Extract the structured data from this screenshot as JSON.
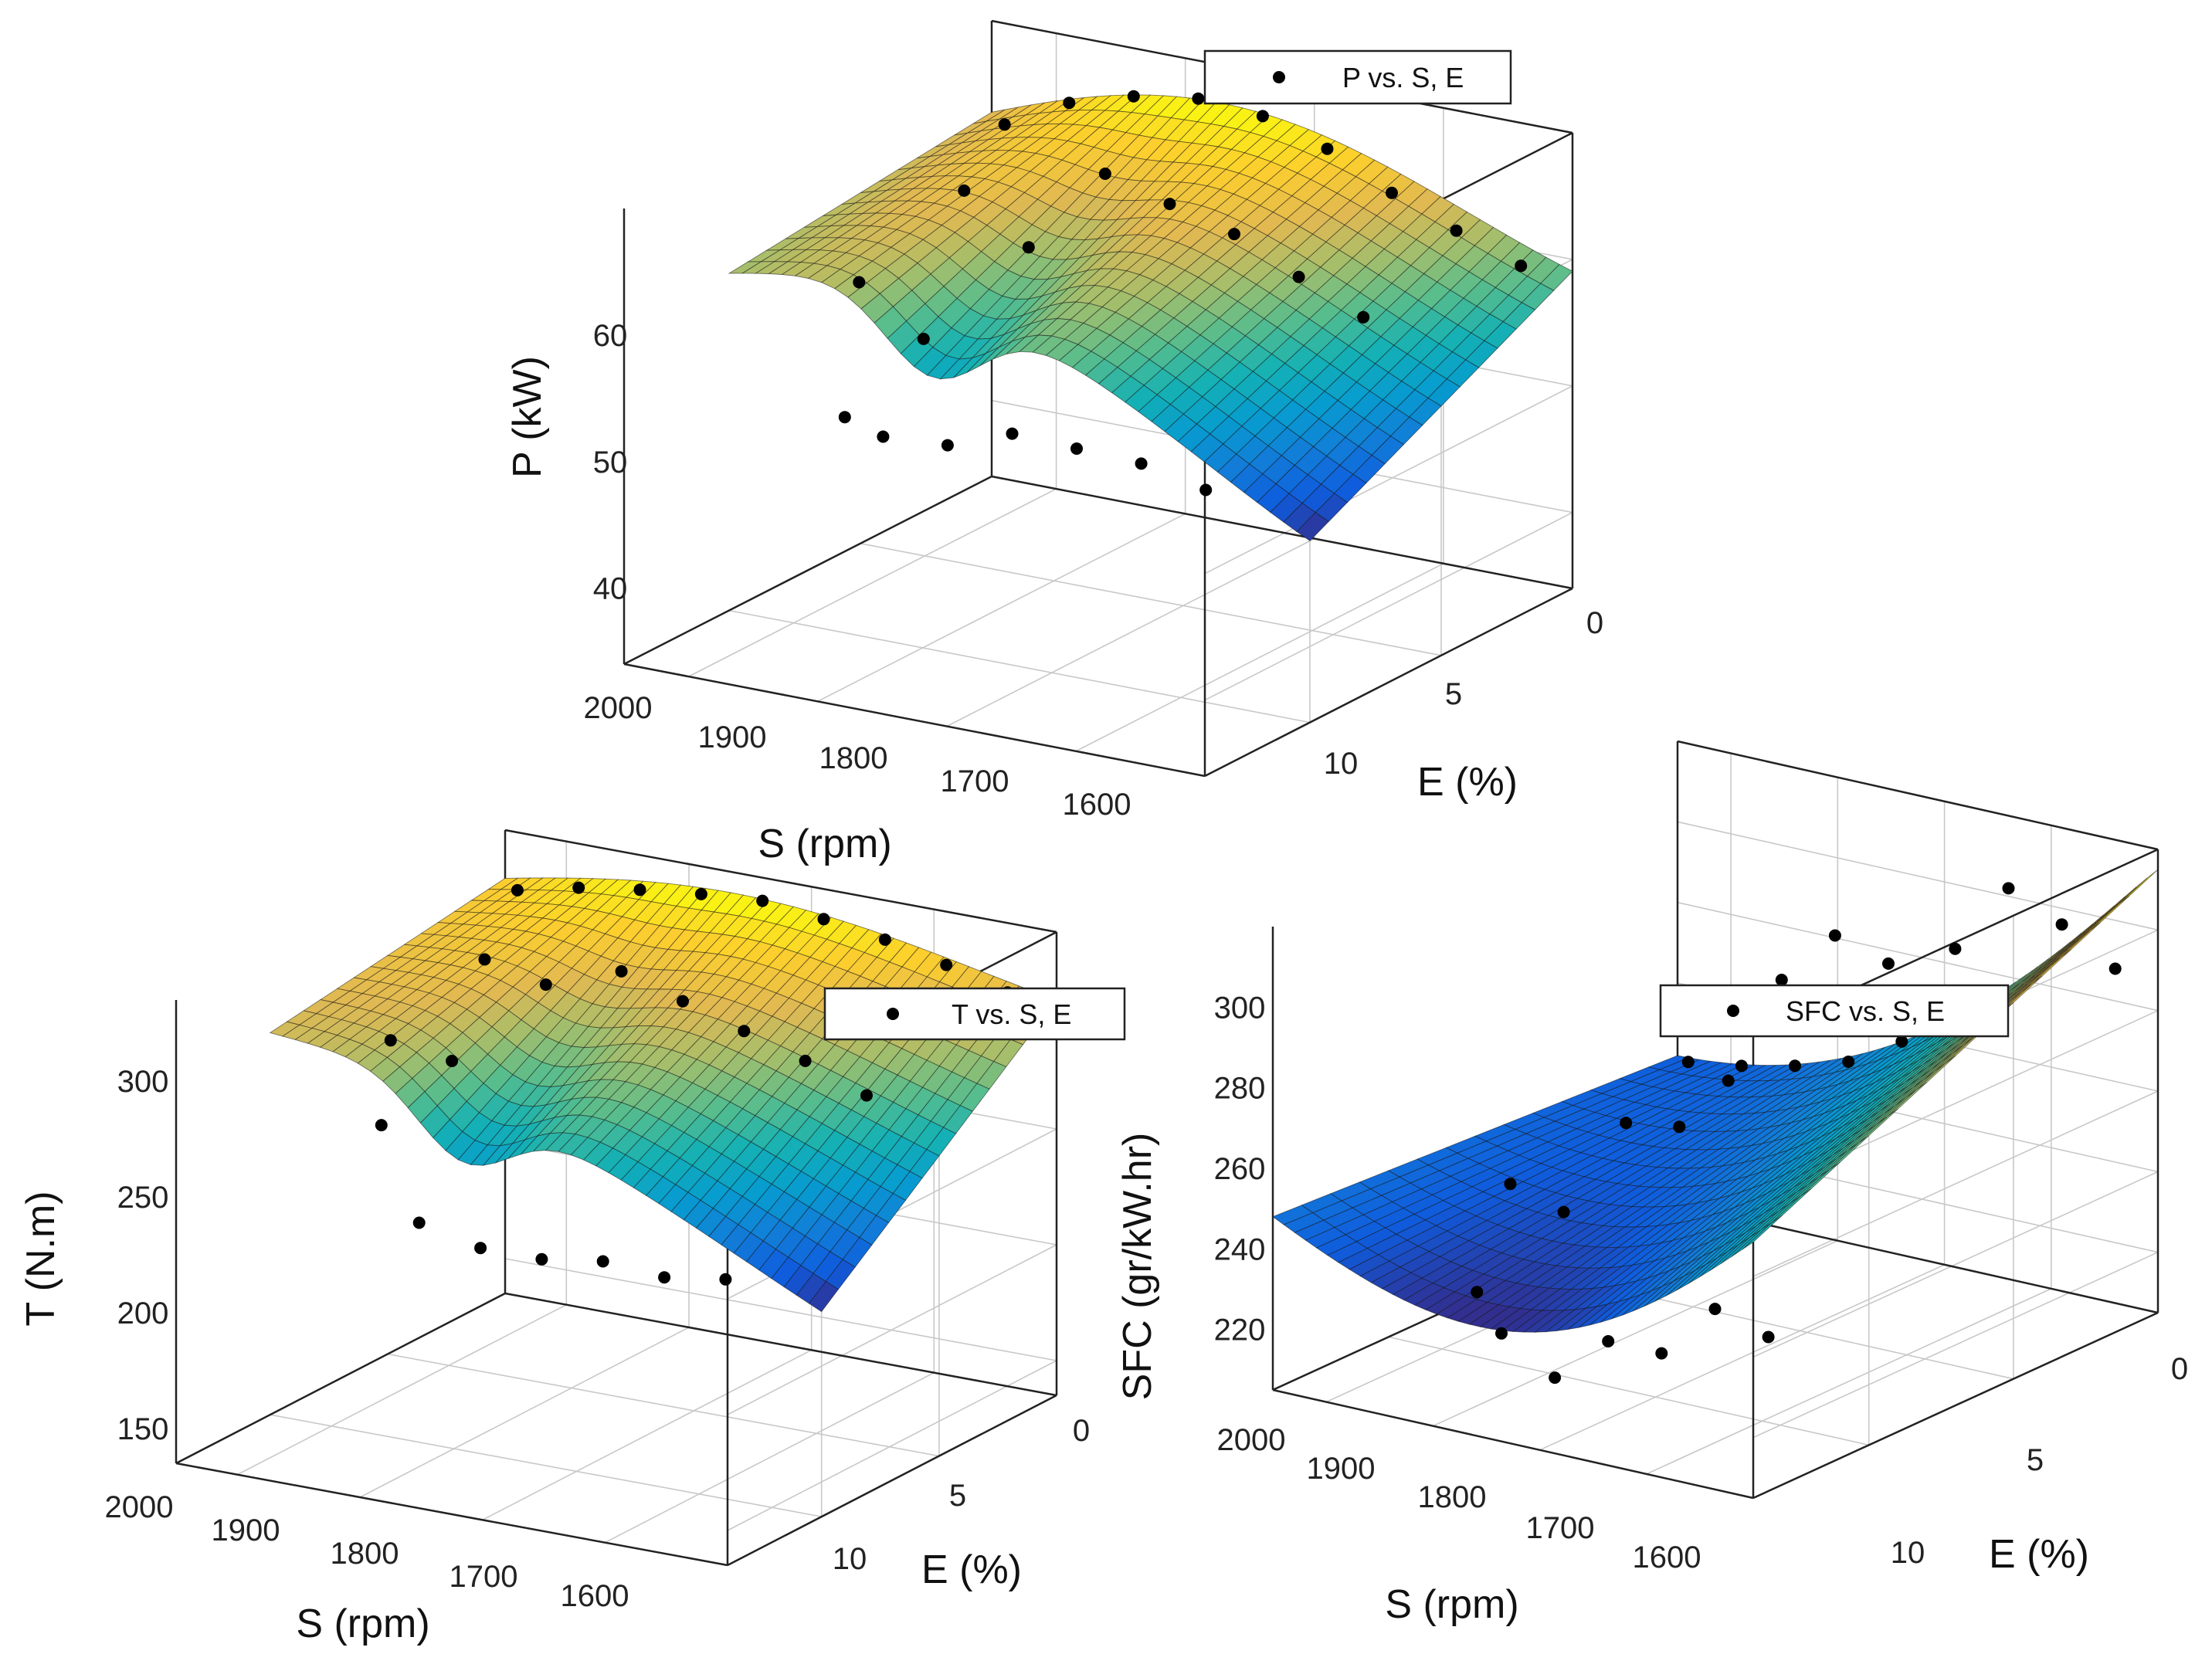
{
  "chart_data": [
    {
      "type": "surface",
      "title": "",
      "legend": "P vs. S, E",
      "zlabel": "P (kW)",
      "xlabel": "S (rpm)",
      "ylabel": "E (%)",
      "s_ticks": [
        "2000",
        "1900",
        "1800",
        "1700",
        "1600"
      ],
      "e_ticks": [
        "0",
        "5",
        "10"
      ],
      "z_ticks": [
        "40",
        "50",
        "60"
      ],
      "zlim": [
        34,
        70
      ],
      "s_range": [
        1550,
        2000
      ],
      "e_range": [
        0,
        14
      ],
      "surface_e_cut": 10,
      "points": [
        {
          "S": 1960,
          "E": 12,
          "Z": 53.7
        },
        {
          "S": 1910,
          "E": 12,
          "Z": 54.8
        },
        {
          "S": 1860,
          "E": 12,
          "Z": 55.0
        },
        {
          "S": 1810,
          "E": 12,
          "Z": 55.2
        },
        {
          "S": 1760,
          "E": 12,
          "Z": 53.3
        },
        {
          "S": 1710,
          "E": 12,
          "Z": 53.0
        },
        {
          "S": 1960,
          "E": 6,
          "Z": 61.0
        },
        {
          "S": 1910,
          "E": 6,
          "Z": 63.2
        },
        {
          "S": 1860,
          "E": 6,
          "Z": 65.6
        },
        {
          "S": 1810,
          "E": 6,
          "Z": 67.0
        },
        {
          "S": 1760,
          "E": 6,
          "Z": 68.4
        },
        {
          "S": 1960,
          "E": 0,
          "Z": 58.7
        },
        {
          "S": 1910,
          "E": 0,
          "Z": 60.5
        },
        {
          "S": 1860,
          "E": 0,
          "Z": 62.5
        },
        {
          "S": 1810,
          "E": 0,
          "Z": 65.0
        },
        {
          "S": 1760,
          "E": 0,
          "Z": 66.6
        },
        {
          "S": 1710,
          "E": 0,
          "Z": 67.0
        },
        {
          "S": 1660,
          "E": 0,
          "Z": 66.2
        },
        {
          "S": 1610,
          "E": 0,
          "Z": 64.7
        },
        {
          "S": 1560,
          "E": 0,
          "Z": 62.0
        },
        {
          "S": 1610,
          "E": 4,
          "Z": 62.0
        },
        {
          "S": 1610,
          "E": 8,
          "Z": 59.0
        },
        {
          "S": 1660,
          "E": 4,
          "Z": 58.5
        },
        {
          "S": 1660,
          "E": 8,
          "Z": 55.5
        },
        {
          "S": 1660,
          "E": 11,
          "Z": 52.5
        }
      ]
    },
    {
      "type": "surface",
      "title": "",
      "legend": "T vs. S, E",
      "zlabel": "T (N.m)",
      "xlabel": "S (rpm)",
      "ylabel": "E (%)",
      "s_ticks": [
        "2000",
        "1900",
        "1800",
        "1700",
        "1600"
      ],
      "e_ticks": [
        "0",
        "5",
        "10"
      ],
      "z_ticks": [
        "150",
        "200",
        "250",
        "300"
      ],
      "zlim": [
        135,
        335
      ],
      "s_range": [
        1550,
        2000
      ],
      "e_range": [
        0,
        14
      ],
      "surface_e_cut": 10,
      "points": [
        {
          "S": 1960,
          "E": 12,
          "Z": 244
        },
        {
          "S": 1910,
          "E": 12,
          "Z": 240
        },
        {
          "S": 1860,
          "E": 12,
          "Z": 242
        },
        {
          "S": 1810,
          "E": 12,
          "Z": 238
        },
        {
          "S": 1760,
          "E": 12,
          "Z": 238
        },
        {
          "S": 1710,
          "E": 12,
          "Z": 244
        },
        {
          "S": 1960,
          "E": 6,
          "Z": 292
        },
        {
          "S": 1910,
          "E": 6,
          "Z": 302
        },
        {
          "S": 1860,
          "E": 6,
          "Z": 310
        },
        {
          "S": 1810,
          "E": 6,
          "Z": 318
        },
        {
          "S": 1760,
          "E": 6,
          "Z": 326
        },
        {
          "S": 1960,
          "E": 0,
          "Z": 305
        },
        {
          "S": 1910,
          "E": 0,
          "Z": 312
        },
        {
          "S": 1860,
          "E": 0,
          "Z": 318
        },
        {
          "S": 1810,
          "E": 0,
          "Z": 322
        },
        {
          "S": 1760,
          "E": 0,
          "Z": 325
        },
        {
          "S": 1710,
          "E": 0,
          "Z": 323
        },
        {
          "S": 1660,
          "E": 0,
          "Z": 320
        },
        {
          "S": 1610,
          "E": 0,
          "Z": 316
        },
        {
          "S": 1560,
          "E": 0,
          "Z": 310
        },
        {
          "S": 1610,
          "E": 4,
          "Z": 306
        },
        {
          "S": 1610,
          "E": 8,
          "Z": 292
        },
        {
          "S": 1660,
          "E": 4,
          "Z": 300
        },
        {
          "S": 1660,
          "E": 8,
          "Z": 288
        },
        {
          "S": 1660,
          "E": 11,
          "Z": 276
        }
      ]
    },
    {
      "type": "surface",
      "title": "",
      "legend": "SFC vs. S, E",
      "zlabel": "SFC (gr/kW.hr)",
      "xlabel": "S (rpm)",
      "ylabel": "E (%)",
      "s_ticks": [
        "2000",
        "1900",
        "1800",
        "1700",
        "1600"
      ],
      "e_ticks": [
        "0",
        "5",
        "10"
      ],
      "z_ticks": [
        "220",
        "240",
        "260",
        "280",
        "300"
      ],
      "zlim": [
        205,
        320
      ],
      "s_range": [
        1550,
        2000
      ],
      "e_range": [
        0,
        14
      ],
      "surface_e_cut": 14,
      "points": [
        {
          "S": 1960,
          "E": 12,
          "Z": 236
        },
        {
          "S": 1910,
          "E": 12,
          "Z": 240
        },
        {
          "S": 1860,
          "E": 12,
          "Z": 226
        },
        {
          "S": 1810,
          "E": 12,
          "Z": 226
        },
        {
          "S": 1760,
          "E": 12,
          "Z": 214
        },
        {
          "S": 1710,
          "E": 12,
          "Z": 222
        },
        {
          "S": 1960,
          "E": 6,
          "Z": 300
        },
        {
          "S": 1910,
          "E": 6,
          "Z": 306
        },
        {
          "S": 1860,
          "E": 6,
          "Z": 310
        },
        {
          "S": 1810,
          "E": 6,
          "Z": 296
        },
        {
          "S": 1760,
          "E": 6,
          "Z": 268
        },
        {
          "S": 1960,
          "E": 0,
          "Z": 288
        },
        {
          "S": 1910,
          "E": 0,
          "Z": 296
        },
        {
          "S": 1860,
          "E": 0,
          "Z": 302
        },
        {
          "S": 1810,
          "E": 0,
          "Z": 284
        },
        {
          "S": 1760,
          "E": 0,
          "Z": 258
        },
        {
          "S": 1710,
          "E": 0,
          "Z": 250
        },
        {
          "S": 1660,
          "E": 0,
          "Z": 246
        },
        {
          "S": 1610,
          "E": 0,
          "Z": 243
        },
        {
          "S": 1560,
          "E": 0,
          "Z": 241
        },
        {
          "S": 1610,
          "E": 4,
          "Z": 242
        },
        {
          "S": 1610,
          "E": 8,
          "Z": 240
        },
        {
          "S": 1660,
          "E": 4,
          "Z": 244
        },
        {
          "S": 1660,
          "E": 8,
          "Z": 236
        },
        {
          "S": 1660,
          "E": 11,
          "Z": 226
        }
      ]
    }
  ]
}
